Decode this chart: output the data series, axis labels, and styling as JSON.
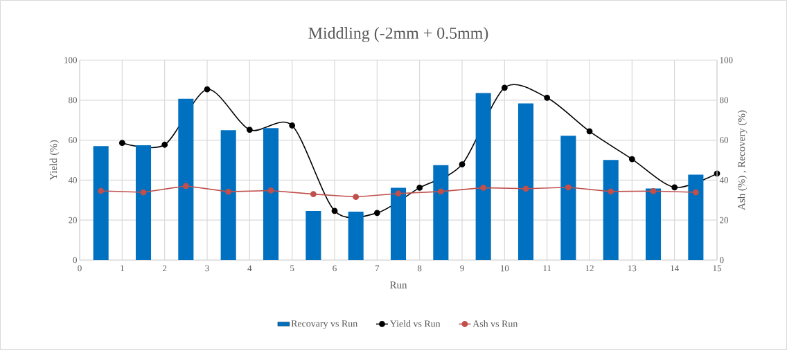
{
  "chart_data": {
    "type": "bar",
    "title": "Middling (-2mm + 0.5mm)",
    "xlabel": "Run",
    "ylabel": "Yield (%)",
    "y2label": "Ash (%) , Recovery (%)",
    "xlim": [
      0,
      15
    ],
    "xticks": [
      0,
      1,
      2,
      3,
      4,
      5,
      6,
      7,
      8,
      9,
      10,
      11,
      12,
      13,
      14,
      15
    ],
    "ylim": [
      0,
      100
    ],
    "yticks": [
      0,
      20,
      40,
      60,
      80,
      100
    ],
    "y2lim": [
      0,
      100
    ],
    "y2ticks": [
      0,
      20,
      40,
      60,
      80,
      100
    ],
    "grid": true,
    "legend": "bottom",
    "marker": "circle",
    "line_style": "solid",
    "series": [
      {
        "name": "Recovary vs Run",
        "axis": "y2",
        "color": "#0070c0",
        "x": [
          0.5,
          1.5,
          2.5,
          3.5,
          4.5,
          5.5,
          6.5,
          7.5,
          8.5,
          9.5,
          10.5,
          11.5,
          12.5,
          13.5,
          14.5
        ],
        "values": [
          57,
          57.4,
          80.7,
          65,
          66,
          24.6,
          24.2,
          36.2,
          47.5,
          83.6,
          78.4,
          62.2,
          50.1,
          35.8,
          42.7
        ]
      },
      {
        "name": "Yield vs Run",
        "type": "line",
        "color": "#000000",
        "x": [
          1,
          2,
          3,
          4,
          5,
          6,
          7,
          8,
          9,
          10,
          11,
          12,
          13,
          14,
          15
        ],
        "values": [
          58.6,
          57.7,
          85.4,
          65.2,
          67.3,
          24.6,
          23.6,
          36.2,
          47.9,
          86.2,
          81.2,
          64.4,
          50.5,
          36.4,
          43.3
        ]
      },
      {
        "name": "Ash vs Run",
        "type": "line",
        "axis": "y2",
        "color": "#c0504d",
        "x": [
          0.5,
          1.5,
          2.5,
          3.5,
          4.5,
          5.5,
          6.5,
          7.5,
          8.5,
          9.5,
          10.5,
          11.5,
          12.5,
          13.5,
          14.5
        ],
        "values": [
          34.6,
          33.9,
          37.1,
          34.2,
          34.8,
          33.0,
          31.6,
          33.3,
          34.3,
          36.2,
          35.7,
          36.4,
          34.3,
          34.5,
          33.9
        ]
      }
    ]
  }
}
